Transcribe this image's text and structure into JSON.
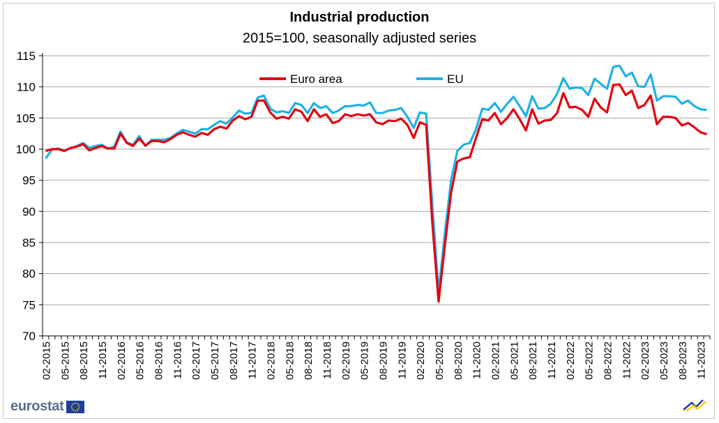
{
  "header": {
    "title": "Industrial production",
    "subtitle": "2015=100, seasonally adjusted series"
  },
  "footer": {
    "logo_text": "eurostat"
  },
  "chart_data": {
    "type": "line",
    "title": "Industrial production",
    "subtitle": "2015=100, seasonally adjusted series",
    "xlabel": "",
    "ylabel": "",
    "ylim": [
      70,
      115
    ],
    "yticks": [
      70,
      75,
      80,
      85,
      90,
      95,
      100,
      105,
      110,
      115
    ],
    "grid": true,
    "legend_placement": "top-center",
    "x_start": "02-2015",
    "x_tick_labels": [
      "02-2015",
      "05-2015",
      "08-2015",
      "11-2015",
      "02-2016",
      "05-2016",
      "08-2016",
      "11-2016",
      "02-2017",
      "05-2017",
      "08-2017",
      "11-2017",
      "02-2018",
      "05-2018",
      "08-2018",
      "11-2018",
      "02-2019",
      "05-2019",
      "08-2019",
      "11-2019",
      "02-2020",
      "05-2020",
      "08-2020",
      "11-2020",
      "02-2021",
      "05-2021",
      "08-2021",
      "11-2021",
      "02-2022",
      "05-2022",
      "08-2022",
      "11-2022",
      "02-2023",
      "05-2023",
      "08-2023",
      "11-2023"
    ],
    "series": [
      {
        "name": "Euro area",
        "color": "#e3000f",
        "values": [
          99.7,
          100.0,
          100.0,
          99.7,
          100.2,
          100.4,
          100.8,
          99.8,
          100.2,
          100.5,
          100.1,
          100.1,
          102.5,
          101.0,
          100.5,
          101.7,
          100.6,
          101.3,
          101.3,
          101.1,
          101.6,
          102.3,
          102.7,
          102.3,
          102.0,
          102.6,
          102.3,
          103.2,
          103.6,
          103.3,
          104.6,
          105.3,
          104.8,
          105.2,
          107.8,
          107.8,
          105.9,
          104.9,
          105.2,
          104.9,
          106.4,
          106.0,
          104.5,
          106.4,
          105.2,
          105.6,
          104.2,
          104.5,
          105.6,
          105.3,
          105.6,
          105.4,
          105.6,
          104.3,
          104.0,
          104.6,
          104.5,
          104.9,
          103.9,
          101.8,
          104.3,
          103.9,
          88.0,
          75.5,
          84.5,
          93.0,
          98.0,
          98.5,
          98.7,
          101.8,
          104.8,
          104.6,
          105.8,
          104.0,
          105.0,
          106.4,
          104.8,
          103.0,
          106.4,
          104.1,
          104.6,
          104.7,
          105.8,
          109.0,
          106.7,
          106.8,
          106.3,
          105.2,
          108.1,
          106.7,
          105.9,
          110.3,
          110.4,
          108.7,
          109.4,
          106.6,
          107.1,
          108.6,
          104.0,
          105.2,
          105.2,
          105.0,
          103.8,
          104.2,
          103.5,
          102.7,
          102.4
        ]
      },
      {
        "name": "EU",
        "color": "#1eb1e6",
        "values": [
          98.5,
          99.9,
          100.1,
          99.8,
          100.1,
          100.5,
          101.0,
          100.2,
          100.5,
          100.7,
          100.1,
          100.4,
          102.8,
          101.1,
          100.7,
          102.1,
          100.5,
          101.5,
          101.5,
          101.5,
          101.8,
          102.5,
          103.1,
          102.8,
          102.5,
          103.2,
          103.2,
          103.9,
          104.5,
          104.1,
          105.1,
          106.2,
          105.7,
          105.8,
          108.3,
          108.6,
          106.5,
          105.9,
          106.1,
          105.8,
          107.4,
          107.1,
          105.8,
          107.4,
          106.6,
          106.9,
          105.8,
          106.2,
          106.9,
          106.9,
          107.1,
          107.0,
          107.5,
          105.8,
          105.8,
          106.2,
          106.3,
          106.6,
          105.2,
          103.4,
          105.9,
          105.7,
          91.0,
          77.0,
          86.5,
          95.0,
          99.7,
          100.7,
          101.0,
          103.2,
          106.5,
          106.3,
          107.4,
          106.0,
          107.3,
          108.4,
          106.9,
          105.3,
          108.5,
          106.5,
          106.6,
          107.3,
          108.9,
          111.4,
          109.7,
          109.9,
          109.8,
          108.7,
          111.3,
          110.5,
          109.7,
          113.2,
          113.4,
          111.7,
          112.3,
          110.1,
          110.0,
          112.0,
          107.8,
          108.5,
          108.5,
          108.4,
          107.3,
          107.8,
          106.9,
          106.4,
          106.3
        ]
      }
    ]
  }
}
